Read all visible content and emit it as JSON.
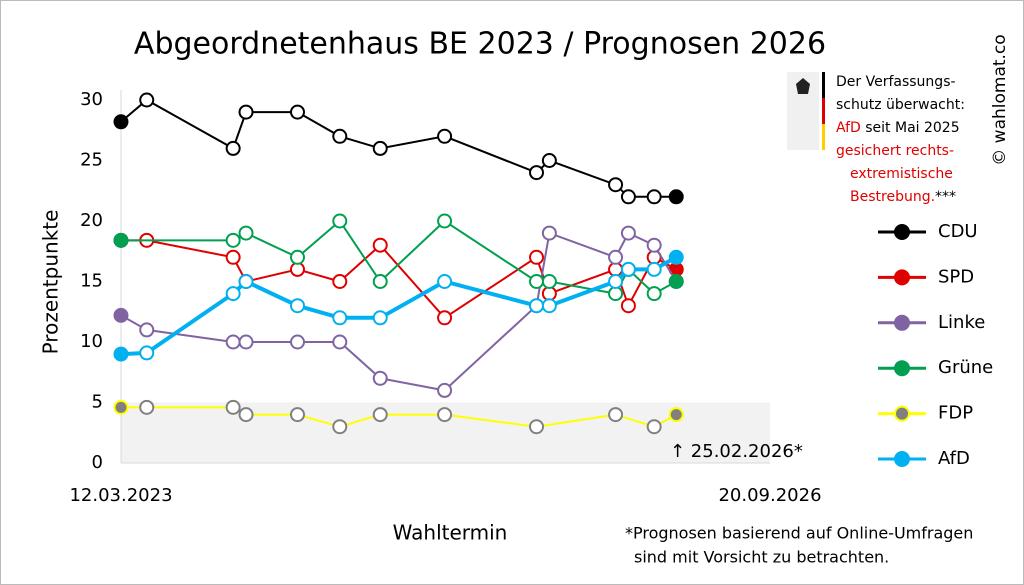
{
  "chart_data": {
    "type": "line",
    "title": "Abgeordnetenhaus BE 2023 / Prognosen 2026",
    "x_label": "Wahltermin",
    "y_label": "Prozentpunkte",
    "xlim": [
      2023.19,
      2026.72
    ],
    "xticks": [
      {
        "value": 2023.19,
        "label": "12.03.2023"
      },
      {
        "value": 2026.72,
        "label": "20.09.2026"
      }
    ],
    "ylim": [
      0,
      30
    ],
    "yticks": [
      0,
      5,
      10,
      15,
      20,
      25,
      30
    ],
    "shaded_below": 5,
    "annotation": "↑ 25.02.2026*",
    "footnote": [
      "*Prognosen basierend auf Online-Umfragen",
      "sind mit Vorsicht zu betrachten."
    ],
    "note": [
      [
        "Der Verfassungs-"
      ],
      [
        "schutz überwacht:"
      ],
      [
        "AfD",
        " seit Mai 2025"
      ],
      [
        "gesichert rechts-"
      ],
      [
        "extremistische"
      ],
      [
        "Bestrebung.",
        "***"
      ]
    ],
    "watermark": "© wahlomat.co",
    "series": [
      {
        "name": "CDU",
        "color": "#000000",
        "x": [
          2023.19,
          2023.33,
          2023.8,
          2023.87,
          2024.15,
          2024.38,
          2024.6,
          2024.95,
          2025.45,
          2025.52,
          2025.88,
          2025.95,
          2026.09,
          2026.21
        ],
        "values": [
          28.2,
          30,
          26,
          29,
          29,
          27,
          26,
          27,
          24,
          25,
          23,
          22,
          22,
          22
        ]
      },
      {
        "name": "SPD",
        "color": "#e00000",
        "x": [
          2023.19,
          2023.33,
          2023.8,
          2023.87,
          2024.15,
          2024.38,
          2024.6,
          2024.95,
          2025.45,
          2025.52,
          2025.88,
          2025.95,
          2026.09,
          2026.21
        ],
        "values": [
          18.4,
          18.4,
          17,
          15,
          16,
          15,
          18,
          12,
          17,
          14,
          16,
          13,
          17,
          16
        ]
      },
      {
        "name": "Linke",
        "color": "#8064a2",
        "x": [
          2023.19,
          2023.33,
          2023.8,
          2023.87,
          2024.15,
          2024.38,
          2024.6,
          2024.95,
          2025.45,
          2025.52,
          2025.88,
          2025.95,
          2026.09,
          2026.21
        ],
        "values": [
          12.2,
          11,
          10,
          10,
          10,
          10,
          7,
          6,
          13,
          19,
          17,
          19,
          18,
          15
        ]
      },
      {
        "name": "Grüne",
        "color": "#00a050",
        "x": [
          2023.19,
          2023.8,
          2023.87,
          2024.15,
          2024.38,
          2024.6,
          2024.95,
          2025.45,
          2025.52,
          2025.88,
          2025.95,
          2026.09,
          2026.21
        ],
        "values": [
          18.4,
          18.4,
          19,
          17,
          20,
          15,
          20,
          15,
          15,
          14,
          16,
          14,
          15
        ]
      },
      {
        "name": "FDP",
        "color": "#ffff00",
        "marker_color": "#808080",
        "x": [
          2023.19,
          2023.33,
          2023.8,
          2023.87,
          2024.15,
          2024.38,
          2024.6,
          2024.95,
          2025.45,
          2025.88,
          2026.09,
          2026.21
        ],
        "values": [
          4.6,
          4.6,
          4.6,
          4,
          4,
          3,
          4,
          4,
          3,
          4,
          3,
          4
        ]
      },
      {
        "name": "AfD",
        "color": "#00b0f0",
        "width": 4,
        "x": [
          2023.19,
          2023.33,
          2023.8,
          2023.87,
          2024.15,
          2024.38,
          2024.6,
          2024.95,
          2025.45,
          2025.52,
          2025.88,
          2025.95,
          2026.09,
          2026.21
        ],
        "values": [
          9,
          9.1,
          14,
          15,
          13,
          12,
          12,
          15,
          13,
          13,
          15,
          16,
          16,
          17
        ]
      }
    ]
  }
}
